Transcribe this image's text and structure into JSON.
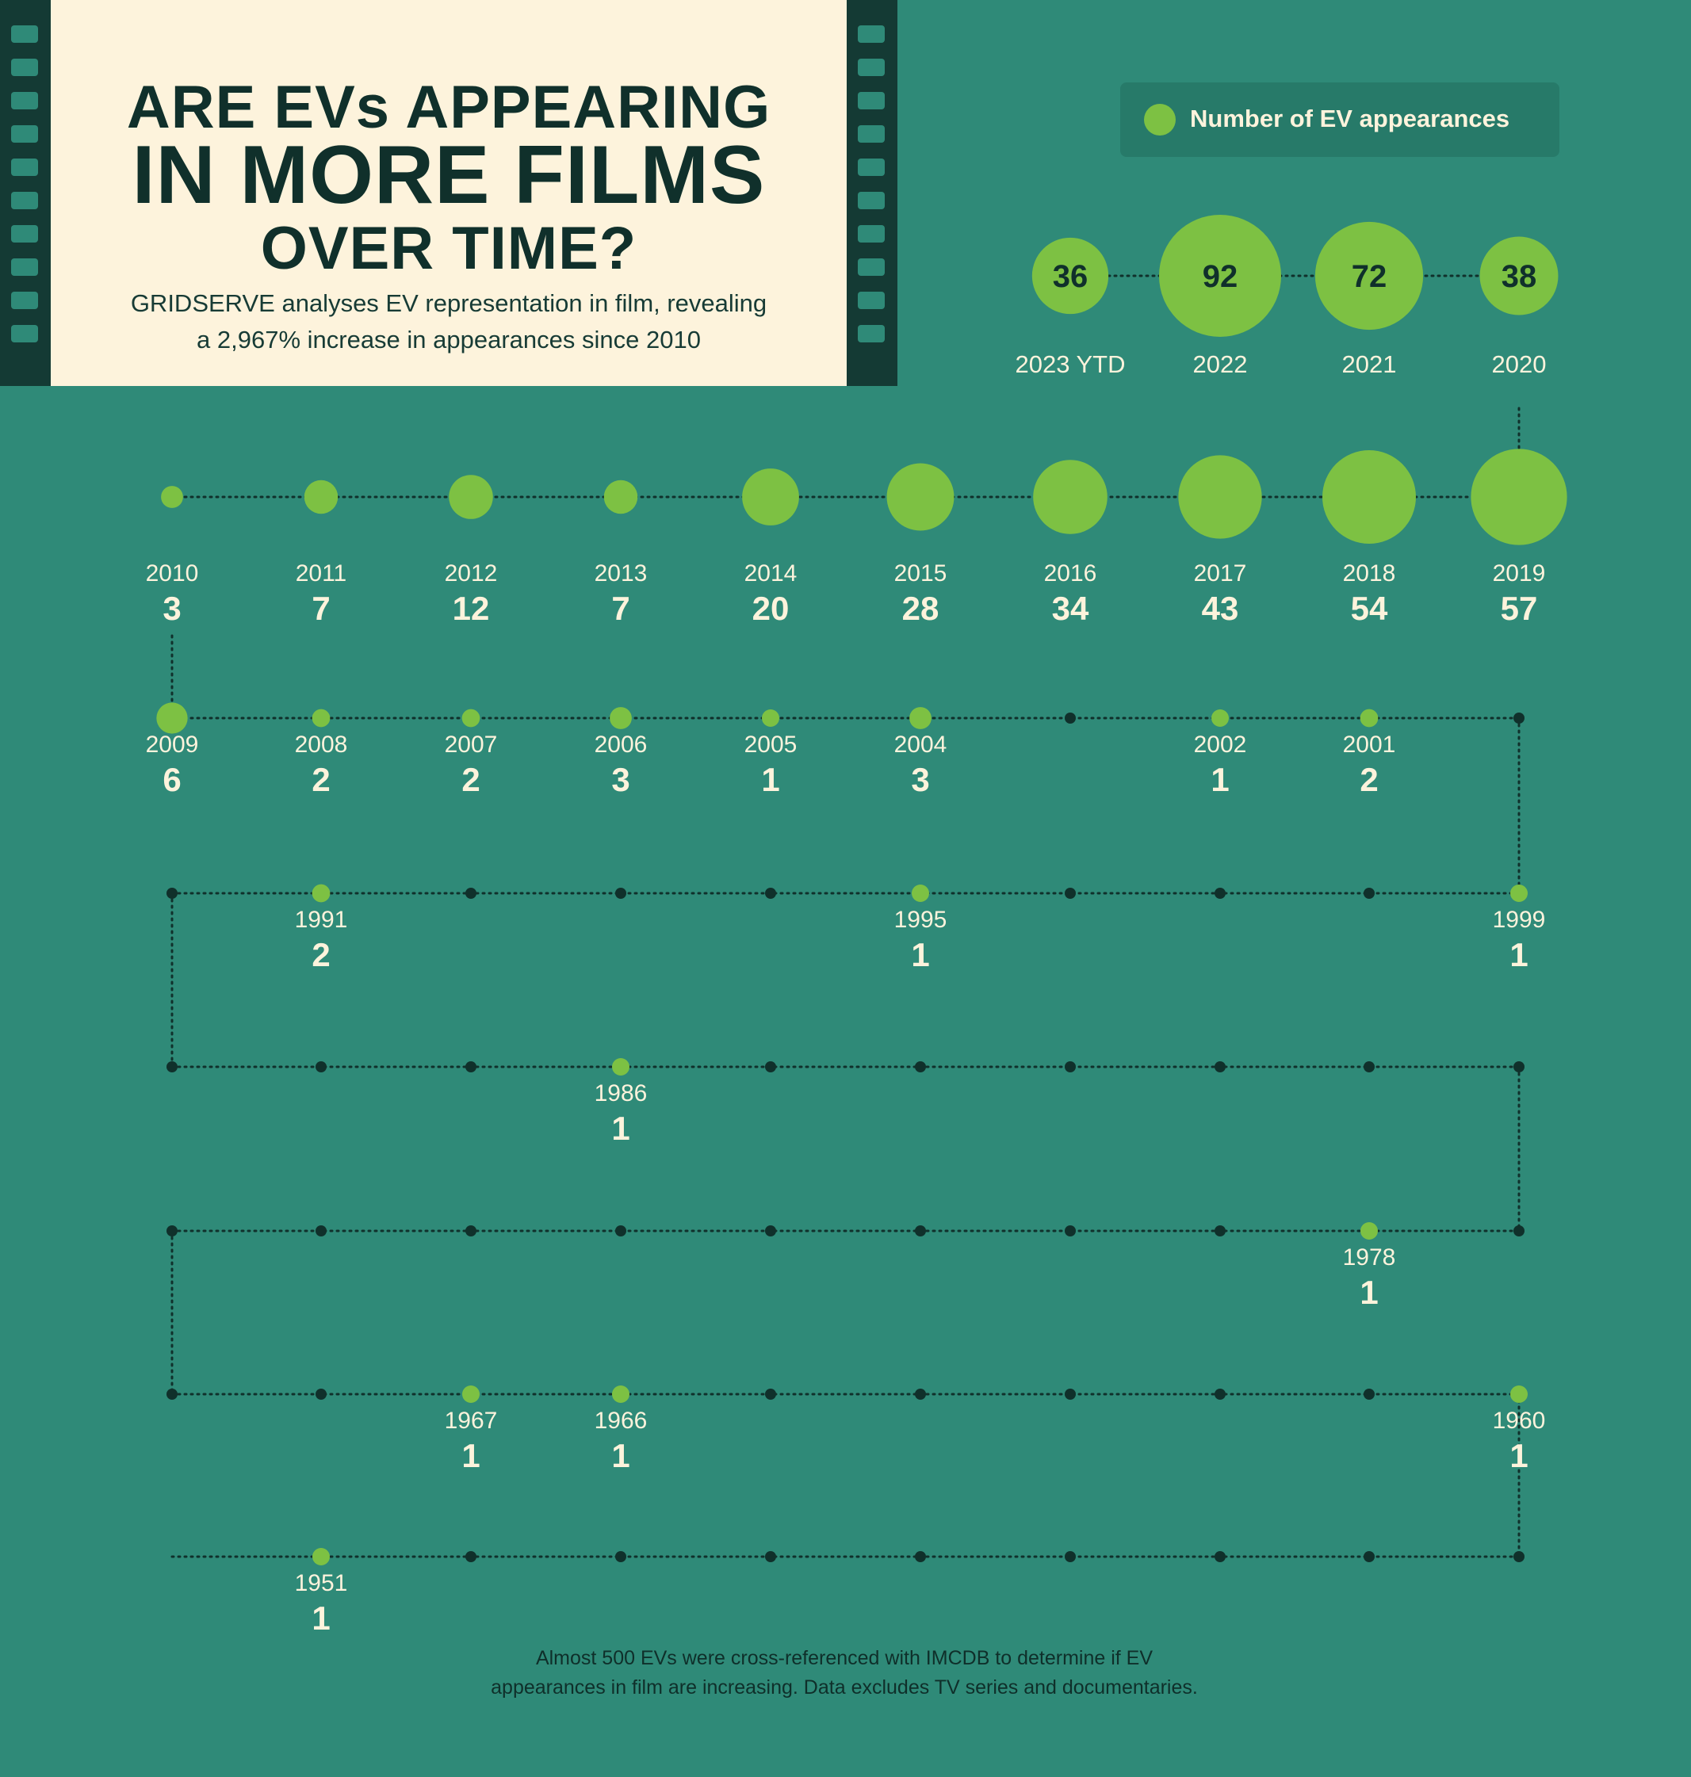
{
  "header": {
    "title_line1": "ARE EVs APPEARING",
    "title_line2": "IN MORE FILMS",
    "title_line3": "OVER TIME?",
    "subtitle_line1": "GRIDSERVE analyses EV representation in film, revealing",
    "subtitle_line2": "a 2,967% increase in appearances since 2010"
  },
  "legend": {
    "label": "Number of EV appearances"
  },
  "footnote": {
    "line1": "Almost 500 EVs were cross-referenced with IMCDB to determine if EV",
    "line2": "appearances in film are increasing. Data excludes TV series and documentaries."
  },
  "colors": {
    "background": "#2f8a78",
    "bubble": "#7dc143",
    "empty_dot": "#10302b",
    "cream": "#fdf3dc"
  },
  "chart_data": {
    "type": "scatter",
    "encoding": "bubble size = number of EV appearances per film year",
    "series": [
      {
        "name": "Number of EV appearances",
        "points": [
          {
            "year": "2023 YTD",
            "value": 36
          },
          {
            "year": "2022",
            "value": 92
          },
          {
            "year": "2021",
            "value": 72
          },
          {
            "year": "2020",
            "value": 38
          },
          {
            "year": "2019",
            "value": 57
          },
          {
            "year": "2018",
            "value": 54
          },
          {
            "year": "2017",
            "value": 43
          },
          {
            "year": "2016",
            "value": 34
          },
          {
            "year": "2015",
            "value": 28
          },
          {
            "year": "2014",
            "value": 20
          },
          {
            "year": "2013",
            "value": 7
          },
          {
            "year": "2012",
            "value": 12
          },
          {
            "year": "2011",
            "value": 7
          },
          {
            "year": "2010",
            "value": 3
          },
          {
            "year": "2009",
            "value": 6
          },
          {
            "year": "2008",
            "value": 2
          },
          {
            "year": "2007",
            "value": 2
          },
          {
            "year": "2006",
            "value": 3
          },
          {
            "year": "2005",
            "value": 1
          },
          {
            "year": "2004",
            "value": 3
          },
          {
            "year": "2002",
            "value": 1
          },
          {
            "year": "2001",
            "value": 2
          },
          {
            "year": "1999",
            "value": 1
          },
          {
            "year": "1995",
            "value": 1
          },
          {
            "year": "1991",
            "value": 2
          },
          {
            "year": "1986",
            "value": 1
          },
          {
            "year": "1978",
            "value": 1
          },
          {
            "year": "1967",
            "value": 1
          },
          {
            "year": "1966",
            "value": 1
          },
          {
            "year": "1960",
            "value": 1
          },
          {
            "year": "1951",
            "value": 1
          }
        ]
      }
    ]
  }
}
